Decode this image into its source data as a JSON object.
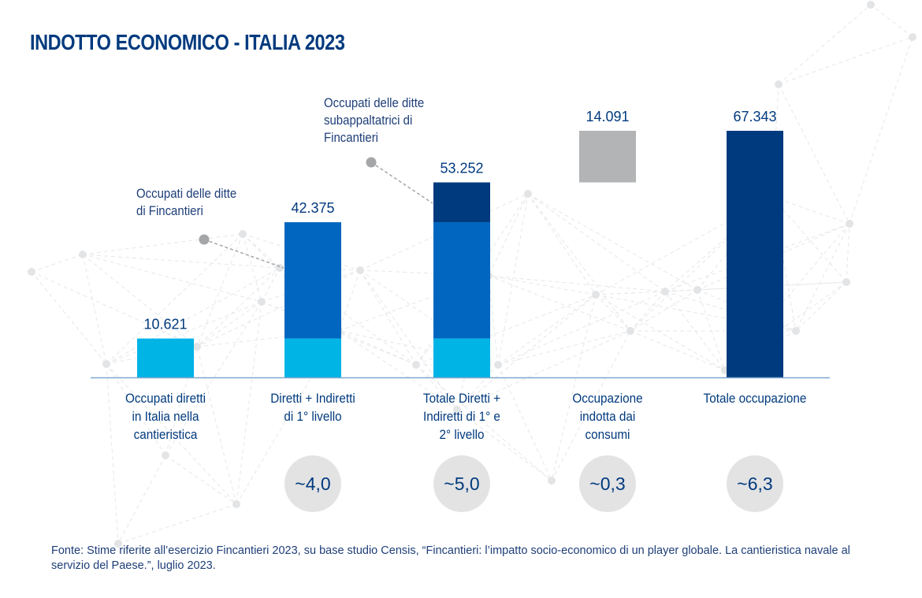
{
  "title": "INDOTTO ECONOMICO - ITALIA 2023",
  "source": "Fonte: Stime riferite all’esercizio Fincantieri 2023, su base studio Censis, “Fincantieri: l’impatto socio-economico di un player globale. La cantieristica navale al servizio del Paese.”, luglio 2023.",
  "annotations": {
    "fincantieri": "Occupati delle ditte\ndi Fincantieri",
    "subcontractors": "Occupati delle ditte\nsubappaltatrici di\nFincantieri"
  },
  "colors": {
    "direct": "#00B4E6",
    "indirect_1": "#0066BF",
    "indirect_2": "#003A7E",
    "consumption": "#B3B4B6",
    "total": "#003A7E",
    "text": "#003A7E",
    "baseline": "#7FA8D0",
    "multiplier_circle": "#E3E3E4"
  },
  "chart_data": {
    "type": "bar",
    "subtype": "waterfall",
    "categories": [
      "Occupati diretti in Italia nella cantieristica",
      "Diretti + Indiretti di 1° livello",
      "Totale Diretti + Indiretti di 1° e 2° livello",
      "Occupazione indotta dai consumi",
      "Totale occupazione"
    ],
    "category_lines": [
      [
        "Occupati diretti",
        "in Italia nella",
        "cantieristica"
      ],
      [
        "Diretti + Indiretti",
        "di 1° livello"
      ],
      [
        "Totale Diretti +",
        "Indiretti di 1° e",
        "2° livello"
      ],
      [
        "Occupazione",
        "indotta dai",
        "consumi"
      ],
      [
        "Totale occupazione"
      ]
    ],
    "bars": [
      {
        "label": "10.621",
        "segments": [
          {
            "from": 0,
            "to": 10621,
            "color_key": "direct"
          }
        ]
      },
      {
        "label": "42.375",
        "segments": [
          {
            "from": 0,
            "to": 10621,
            "color_key": "direct"
          },
          {
            "from": 10621,
            "to": 42375,
            "color_key": "indirect_1"
          }
        ]
      },
      {
        "label": "53.252",
        "segments": [
          {
            "from": 0,
            "to": 10621,
            "color_key": "direct"
          },
          {
            "from": 10621,
            "to": 42375,
            "color_key": "indirect_1"
          },
          {
            "from": 42375,
            "to": 53252,
            "color_key": "indirect_2"
          }
        ]
      },
      {
        "label": "14.091",
        "segments": [
          {
            "from": 53252,
            "to": 67343,
            "color_key": "consumption"
          }
        ]
      },
      {
        "label": "67.343",
        "segments": [
          {
            "from": 0,
            "to": 67343,
            "color_key": "total"
          }
        ]
      }
    ],
    "multipliers": [
      "",
      "~4,0",
      "~5,0",
      "~0,3",
      "~6,3"
    ],
    "ylim": [
      0,
      67343
    ]
  }
}
